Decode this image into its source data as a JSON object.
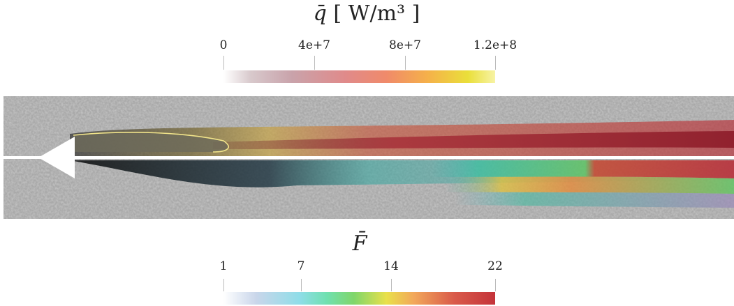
{
  "top_colorbar": {
    "symbol": "q̄",
    "units": "[ W/m³ ]",
    "ticks": [
      "0",
      "4e+7",
      "8e+7",
      "1.2e+8"
    ]
  },
  "bottom_colorbar": {
    "symbol": "F̄",
    "ticks": [
      "1",
      "7",
      "14",
      "22"
    ]
  },
  "colors": {
    "background_field": "#9a9a9a",
    "centerline": "#ffffff",
    "body": "#ffffff"
  }
}
